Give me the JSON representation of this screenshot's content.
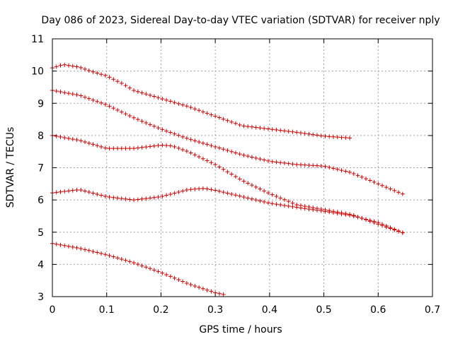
{
  "chart_data": {
    "type": "scatter",
    "title": "Day 086 of 2023, Sidereal Day-to-day VTEC variation (SDTVAR) for receiver nply",
    "xlabel": "GPS time / hours",
    "ylabel": "SDTVAR / TECUs",
    "xlim": [
      0,
      0.7
    ],
    "ylim": [
      3,
      11
    ],
    "xticks": [
      0,
      0.1,
      0.2,
      0.3,
      0.4,
      0.5,
      0.6,
      0.7
    ],
    "yticks": [
      3,
      4,
      5,
      6,
      7,
      8,
      9,
      10,
      11
    ],
    "xtick_labels": [
      "0",
      "0.1",
      "0.2",
      "0.3",
      "0.4",
      "0.5",
      "0.6",
      "0.7"
    ],
    "ytick_labels": [
      "3",
      "4",
      "5",
      "6",
      "7",
      "8",
      "9",
      "10",
      "11"
    ],
    "grid": true,
    "marker": "+",
    "color": "#cc0000",
    "series": [
      {
        "name": "track-1",
        "x": [
          0,
          0.02,
          0.05,
          0.07,
          0.1,
          0.13,
          0.15,
          0.2,
          0.25,
          0.3,
          0.35,
          0.4,
          0.45,
          0.5,
          0.55
        ],
        "y": [
          10.1,
          10.2,
          10.12,
          10.0,
          9.85,
          9.6,
          9.4,
          9.15,
          8.9,
          8.6,
          8.3,
          8.2,
          8.1,
          7.98,
          7.92
        ]
      },
      {
        "name": "track-2",
        "x": [
          0,
          0.05,
          0.1,
          0.15,
          0.2,
          0.25,
          0.3,
          0.35,
          0.4,
          0.45,
          0.5,
          0.55,
          0.6,
          0.65
        ],
        "y": [
          9.4,
          9.25,
          8.95,
          8.55,
          8.2,
          7.9,
          7.65,
          7.4,
          7.2,
          7.1,
          7.05,
          6.85,
          6.5,
          6.15
        ]
      },
      {
        "name": "track-3",
        "x": [
          0,
          0.05,
          0.1,
          0.15,
          0.2,
          0.22,
          0.25,
          0.3,
          0.35,
          0.4,
          0.45,
          0.5,
          0.55,
          0.6,
          0.65
        ],
        "y": [
          8.0,
          7.85,
          7.6,
          7.6,
          7.7,
          7.68,
          7.5,
          7.1,
          6.6,
          6.2,
          5.85,
          5.7,
          5.55,
          5.25,
          4.95
        ]
      },
      {
        "name": "track-4",
        "x": [
          0,
          0.05,
          0.1,
          0.15,
          0.2,
          0.25,
          0.28,
          0.3,
          0.35,
          0.4,
          0.45,
          0.5,
          0.55,
          0.6,
          0.65
        ],
        "y": [
          6.22,
          6.32,
          6.1,
          6.0,
          6.1,
          6.32,
          6.36,
          6.3,
          6.1,
          5.9,
          5.77,
          5.65,
          5.52,
          5.3,
          4.95
        ]
      },
      {
        "name": "track-5",
        "x": [
          0,
          0.05,
          0.1,
          0.15,
          0.2,
          0.25,
          0.3,
          0.32
        ],
        "y": [
          4.65,
          4.5,
          4.3,
          4.05,
          3.75,
          3.4,
          3.12,
          3.05
        ]
      }
    ]
  }
}
